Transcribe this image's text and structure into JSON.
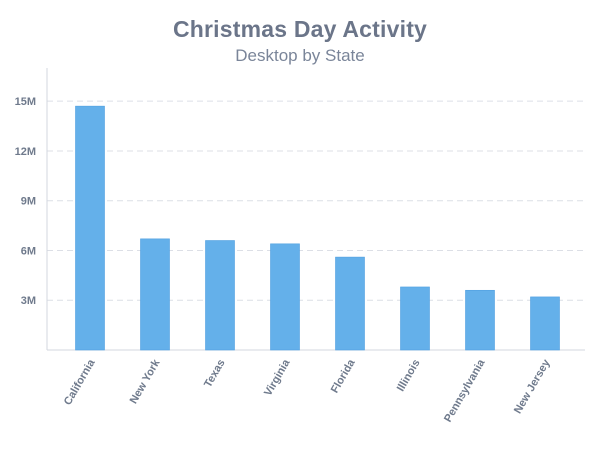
{
  "chart_data": {
    "type": "bar",
    "title": "Christmas Day Activity",
    "subtitle": "Desktop by State",
    "categories": [
      "California",
      "New York",
      "Texas",
      "Virginia",
      "Florida",
      "Illinois",
      "Pennsylvania",
      "New Jersey"
    ],
    "values": [
      14.7,
      6.7,
      6.6,
      6.4,
      5.6,
      3.8,
      3.6,
      3.2
    ],
    "ylim": [
      0,
      17
    ],
    "yticks": [
      3,
      6,
      9,
      12,
      15
    ],
    "ytick_labels": [
      "3M",
      "6M",
      "9M",
      "12M",
      "15M"
    ],
    "xlabel": "",
    "ylabel": "",
    "grid": true,
    "bar_color": "#64b0ea",
    "bar_edge_color": "#4f9fe0",
    "grid_color": "#dcdfe6",
    "axis_color": "#d3d7df"
  }
}
